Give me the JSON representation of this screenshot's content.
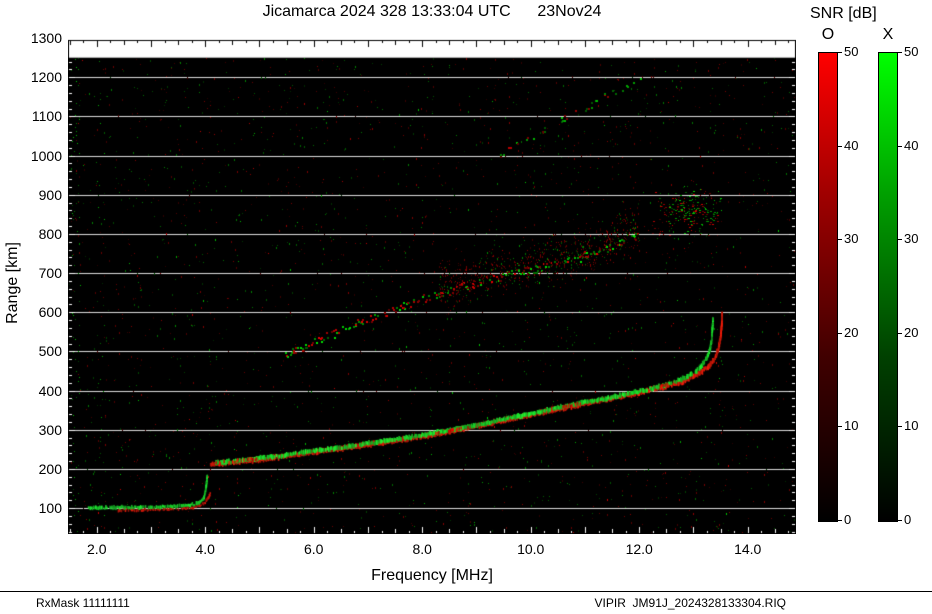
{
  "page": {
    "title": "Jicamarca 2024 328 13:33:04 UTC      23Nov24",
    "snr_label": "SNR [dB]",
    "footer_left": "RxMask 11111111",
    "footer_right": "VIPIR  JM91J_2024328133304.RIQ"
  },
  "chart_data": {
    "type": "heatmap",
    "title": "Jicamarca 2024 328 13:33:04 UTC 23Nov24",
    "xlabel": "Frequency [MHz]",
    "ylabel": "Range [km]",
    "xlim": [
      1.47,
      14.89
    ],
    "ylim": [
      34,
      1313
    ],
    "x_ticks": [
      "2.0",
      "4.0",
      "6.0",
      "8.0",
      "10.0",
      "12.0",
      "14.0"
    ],
    "y_ticks": [
      "1300",
      "1200",
      "1100",
      "1000",
      "900",
      "800",
      "700",
      "600",
      "500",
      "400",
      "300",
      "200",
      "100"
    ],
    "plot_bg": "#000000",
    "data_top_km": 1250,
    "grid": {
      "horizontal_km": [
        100,
        200,
        300,
        400,
        500,
        600,
        700,
        800,
        900,
        1000,
        1100,
        1200
      ],
      "color": "#dedede"
    },
    "colorbar_title": "SNR [dB]",
    "colorbars": [
      {
        "label": "O",
        "stops": [
          "#000000",
          "#400000",
          "#a00000",
          "#ff0000"
        ],
        "ticks": [
          "50",
          "40",
          "30",
          "20",
          "10",
          "0"
        ],
        "range": [
          0,
          50
        ]
      },
      {
        "label": "X",
        "stops": [
          "#000000",
          "#004000",
          "#00a000",
          "#00ff00"
        ],
        "ticks": [
          "50",
          "40",
          "30",
          "20",
          "10",
          "0"
        ],
        "range": [
          0,
          50
        ]
      }
    ],
    "traces": {
      "f_region_o": {
        "mode": "O",
        "color": [
          255,
          30,
          10
        ],
        "points": [
          [
            4.1,
            212
          ],
          [
            4.6,
            218
          ],
          [
            5.0,
            224
          ],
          [
            5.5,
            233
          ],
          [
            6.0,
            243
          ],
          [
            6.5,
            252
          ],
          [
            7.0,
            262
          ],
          [
            7.5,
            272
          ],
          [
            8.0,
            283
          ],
          [
            8.5,
            295
          ],
          [
            9.0,
            309
          ],
          [
            9.5,
            324
          ],
          [
            10.0,
            338
          ],
          [
            10.5,
            353
          ],
          [
            11.0,
            367
          ],
          [
            11.5,
            380
          ],
          [
            12.0,
            395
          ],
          [
            12.4,
            408
          ],
          [
            12.8,
            423
          ],
          [
            13.0,
            435
          ],
          [
            13.15,
            448
          ],
          [
            13.3,
            464
          ],
          [
            13.4,
            483
          ],
          [
            13.46,
            507
          ],
          [
            13.5,
            535
          ],
          [
            13.52,
            565
          ],
          [
            13.53,
            600
          ]
        ]
      },
      "f_region_x": {
        "mode": "X",
        "color": [
          30,
          255,
          50
        ],
        "points": [
          [
            4.2,
            215
          ],
          [
            4.6,
            220
          ],
          [
            5.0,
            227
          ],
          [
            5.5,
            236
          ],
          [
            6.0,
            246
          ],
          [
            6.5,
            255
          ],
          [
            7.0,
            265
          ],
          [
            7.5,
            275
          ],
          [
            8.0,
            286
          ],
          [
            8.5,
            298
          ],
          [
            9.0,
            312
          ],
          [
            9.5,
            327
          ],
          [
            10.0,
            341
          ],
          [
            10.5,
            356
          ],
          [
            11.0,
            370
          ],
          [
            11.5,
            383
          ],
          [
            12.0,
            398
          ],
          [
            12.4,
            411
          ],
          [
            12.7,
            424
          ],
          [
            12.9,
            436
          ],
          [
            13.05,
            450
          ],
          [
            13.16,
            466
          ],
          [
            13.25,
            485
          ],
          [
            13.31,
            508
          ],
          [
            13.34,
            532
          ],
          [
            13.35,
            558
          ],
          [
            13.36,
            585
          ]
        ]
      },
      "e_region_o": {
        "mode": "O",
        "color": [
          230,
          25,
          10
        ],
        "points": [
          [
            2.4,
            95
          ],
          [
            2.9,
            96
          ],
          [
            3.3,
            97
          ],
          [
            3.6,
            99
          ],
          [
            3.8,
            102
          ],
          [
            3.92,
            107
          ],
          [
            4.0,
            115
          ],
          [
            4.06,
            128
          ],
          [
            4.1,
            140
          ]
        ]
      },
      "e_region_x": {
        "mode": "X",
        "color": [
          30,
          240,
          50
        ],
        "points": [
          [
            1.85,
            101
          ],
          [
            2.3,
            101
          ],
          [
            2.7,
            102
          ],
          [
            3.1,
            103
          ],
          [
            3.4,
            105
          ],
          [
            3.65,
            107
          ],
          [
            3.82,
            110
          ],
          [
            3.92,
            115
          ],
          [
            3.97,
            124
          ],
          [
            4.0,
            140
          ],
          [
            4.02,
            158
          ],
          [
            4.03,
            172
          ],
          [
            4.04,
            185
          ]
        ]
      },
      "second_hop": {
        "points": [
          [
            5.45,
            488
          ],
          [
            5.8,
            510
          ],
          [
            6.2,
            536
          ],
          [
            6.6,
            560
          ],
          [
            7.0,
            582
          ],
          [
            7.4,
            604
          ],
          [
            7.8,
            624
          ],
          [
            8.2,
            642
          ],
          [
            8.6,
            660
          ],
          [
            9.0,
            676
          ],
          [
            9.4,
            690
          ],
          [
            9.7,
            700
          ],
          [
            10.0,
            708
          ],
          [
            10.4,
            720
          ],
          [
            10.8,
            735
          ],
          [
            11.2,
            754
          ],
          [
            11.6,
            776
          ],
          [
            12.0,
            800
          ]
        ]
      },
      "third_hop": {
        "points": [
          [
            9.4,
            1000
          ],
          [
            9.8,
            1032
          ],
          [
            10.2,
            1062
          ],
          [
            10.6,
            1092
          ],
          [
            11.0,
            1122
          ],
          [
            11.4,
            1152
          ],
          [
            11.8,
            1182
          ],
          [
            12.1,
            1205
          ]
        ]
      },
      "upper_cluster": {
        "center": [
          12.9,
          855
        ],
        "spread": [
          0.75,
          70
        ],
        "count": 240
      }
    },
    "red_patches_mhz": [
      [
        4.2,
        5.0
      ],
      [
        8.25,
        8.85
      ],
      [
        10.55,
        10.95
      ],
      [
        12.35,
        12.6
      ]
    ],
    "rfi_columns": [
      {
        "freq": 1.62,
        "density": 0.3
      },
      {
        "freq": 2.08,
        "density": 0.12
      },
      {
        "freq": 4.6,
        "density": 0.04
      }
    ],
    "noise": {
      "seed": 1337,
      "count": 2600,
      "red_fraction": 0.55
    }
  }
}
